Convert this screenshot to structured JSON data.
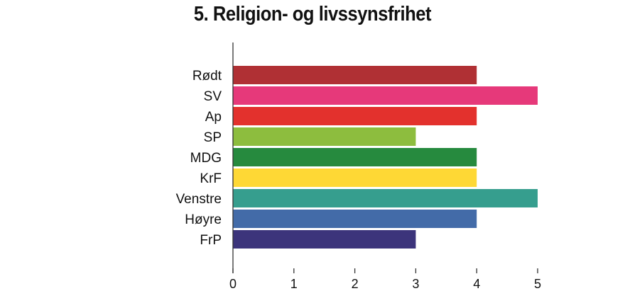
{
  "chart_data": {
    "type": "bar",
    "orientation": "horizontal",
    "title": "5. Religion- og livssynsfrihet",
    "categories": [
      "Rødt",
      "SV",
      "Ap",
      "SP",
      "MDG",
      "KrF",
      "Venstre",
      "Høyre",
      "FrP"
    ],
    "values": [
      4,
      5,
      4,
      3,
      4,
      4,
      5,
      4,
      3
    ],
    "colors": [
      "#b03034",
      "#e6397a",
      "#e3312d",
      "#8dbd3e",
      "#268a3e",
      "#fed835",
      "#369e8e",
      "#436ba8",
      "#3c347b"
    ],
    "xlim": [
      0,
      5
    ],
    "xticks": [
      "0",
      "1",
      "2",
      "3",
      "4",
      "5"
    ],
    "xlabel": "",
    "ylabel": "",
    "grid": false
  }
}
